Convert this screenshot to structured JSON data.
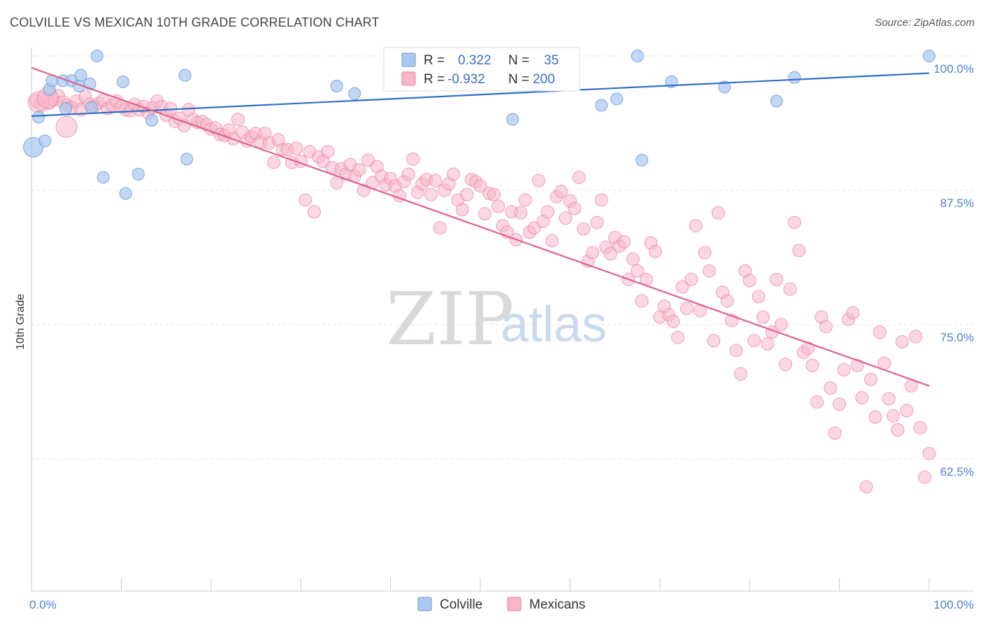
{
  "header": {
    "title": "COLVILLE VS MEXICAN 10TH GRADE CORRELATION CHART",
    "source": "Source: ZipAtlas.com"
  },
  "legend": {
    "r_label": "R =",
    "n_label": "N =",
    "series": [
      {
        "name": "Colville",
        "r": "0.322",
        "n": "35",
        "color": "#a8c8f0",
        "stroke": "#6a9ad8"
      },
      {
        "name": "Mexicans",
        "r": "-0.932",
        "n": "200",
        "color": "#f7b6c8",
        "stroke": "#e87ea0"
      }
    ]
  },
  "watermark": {
    "zip": "ZIP",
    "atlas": "atlas"
  },
  "chart_data": {
    "type": "scatter",
    "title": "COLVILLE VS MEXICAN 10TH GRADE CORRELATION CHART",
    "xlabel": "",
    "ylabel": "10th Grade",
    "xlim": [
      0,
      100
    ],
    "ylim": [
      50,
      100
    ],
    "x_tick_labels": [
      "0.0%",
      "100.0%"
    ],
    "y_ticks": [
      {
        "value": 100,
        "label": "100.0%"
      },
      {
        "value": 87.5,
        "label": "87.5%"
      },
      {
        "value": 75,
        "label": "75.0%"
      },
      {
        "value": 62.5,
        "label": "62.5%"
      }
    ],
    "grid": true,
    "legend_position": "top-center",
    "series": [
      {
        "name": "Colville",
        "color": "#6a9ad8",
        "fill": "#a8c8f0",
        "trend": {
          "x": [
            0,
            100
          ],
          "y": [
            94.4,
            98.4
          ]
        },
        "points": [
          [
            0.2,
            91.5
          ],
          [
            0.8,
            94.3
          ],
          [
            1.5,
            92.1
          ],
          [
            2,
            96.9
          ],
          [
            2.3,
            97.7
          ],
          [
            3.5,
            97.7
          ],
          [
            4.5,
            97.7
          ],
          [
            5.3,
            97.2
          ],
          [
            6.5,
            97.4
          ],
          [
            5.5,
            98.2
          ],
          [
            7.3,
            100
          ],
          [
            3.8,
            95.1
          ],
          [
            6.7,
            95.2
          ],
          [
            8.0,
            88.7
          ],
          [
            10.2,
            97.6
          ],
          [
            10.5,
            87.2
          ],
          [
            11.9,
            89.0
          ],
          [
            13.4,
            94.0
          ],
          [
            17.1,
            98.2
          ],
          [
            17.3,
            90.4
          ],
          [
            34.0,
            97.2
          ],
          [
            36.0,
            96.5
          ],
          [
            42.0,
            100
          ],
          [
            44.0,
            100
          ],
          [
            53.6,
            94.1
          ],
          [
            58.6,
            100
          ],
          [
            67.5,
            100
          ],
          [
            63.5,
            95.4
          ],
          [
            65.2,
            96.0
          ],
          [
            68.0,
            90.3
          ],
          [
            71.3,
            97.6
          ],
          [
            77.2,
            97.1
          ],
          [
            83.0,
            95.8
          ],
          [
            85.0,
            98.0
          ],
          [
            100,
            100
          ]
        ]
      },
      {
        "name": "Mexicans",
        "color": "#e87ea0",
        "fill": "#f7b6c8",
        "trend": {
          "x": [
            0,
            100
          ],
          "y": [
            98.9,
            69.3
          ]
        },
        "points": [
          [
            0.5,
            95.8
          ],
          [
            1,
            95.5
          ],
          [
            1.5,
            96.2
          ],
          [
            2,
            95.6
          ],
          [
            2.5,
            95.9
          ],
          [
            3,
            96.3
          ],
          [
            3.5,
            95.7
          ],
          [
            4,
            95.4
          ],
          [
            4.5,
            95.2
          ],
          [
            5,
            95.8
          ],
          [
            5.5,
            95.0
          ],
          [
            6,
            96.2
          ],
          [
            6.5,
            95.5
          ],
          [
            7,
            95.3
          ],
          [
            7.5,
            95.6
          ],
          [
            8,
            95.9
          ],
          [
            8.5,
            95.1
          ],
          [
            9,
            95.4
          ],
          [
            9.5,
            95.8
          ],
          [
            10,
            95.3
          ],
          [
            10.5,
            95.0
          ],
          [
            11,
            94.9
          ],
          [
            11.5,
            95.5
          ],
          [
            12,
            95.0
          ],
          [
            12.5,
            95.3
          ],
          [
            13,
            94.7
          ],
          [
            13.5,
            95.2
          ],
          [
            14,
            95.8
          ],
          [
            14.5,
            95.3
          ],
          [
            15,
            94.5
          ],
          [
            15.5,
            95.1
          ],
          [
            16,
            93.9
          ],
          [
            16.5,
            94.2
          ],
          [
            17,
            93.5
          ],
          [
            17.5,
            95.0
          ],
          [
            18,
            94.1
          ],
          [
            18.5,
            93.8
          ],
          [
            19,
            93.9
          ],
          [
            19.5,
            93.6
          ],
          [
            20,
            93.2
          ],
          [
            20.5,
            93.3
          ],
          [
            21,
            92.7
          ],
          [
            21.5,
            92.6
          ],
          [
            22,
            93.1
          ],
          [
            22.5,
            92.3
          ],
          [
            23,
            94.1
          ],
          [
            23.5,
            92.9
          ],
          [
            24,
            92.1
          ],
          [
            24.5,
            92.5
          ],
          [
            25,
            92.8
          ],
          [
            25.5,
            92.0
          ],
          [
            26,
            92.8
          ],
          [
            26.5,
            91.9
          ],
          [
            27,
            90.1
          ],
          [
            27.5,
            92.2
          ],
          [
            28,
            91.3
          ],
          [
            28.5,
            91.3
          ],
          [
            29,
            90.1
          ],
          [
            29.5,
            91.4
          ],
          [
            30,
            90.2
          ],
          [
            30.5,
            86.6
          ],
          [
            31,
            91.1
          ],
          [
            31.5,
            85.5
          ],
          [
            32,
            90.6
          ],
          [
            32.5,
            90.2
          ],
          [
            33,
            91.1
          ],
          [
            33.5,
            89.6
          ],
          [
            34,
            88.2
          ],
          [
            34.5,
            89.5
          ],
          [
            35,
            89.0
          ],
          [
            35.5,
            89.9
          ],
          [
            36,
            88.8
          ],
          [
            36.5,
            89.4
          ],
          [
            37,
            87.5
          ],
          [
            37.5,
            90.3
          ],
          [
            38,
            88.2
          ],
          [
            38.5,
            89.7
          ],
          [
            39,
            88.8
          ],
          [
            39.5,
            88.0
          ],
          [
            40,
            88.6
          ],
          [
            40.5,
            87.9
          ],
          [
            41,
            87.0
          ],
          [
            41.5,
            88.3
          ],
          [
            42,
            89.0
          ],
          [
            42.5,
            90.4
          ],
          [
            43,
            87.3
          ],
          [
            43.5,
            88.1
          ],
          [
            44,
            88.5
          ],
          [
            44.5,
            87.1
          ],
          [
            45,
            88.4
          ],
          [
            45.5,
            84.0
          ],
          [
            46,
            87.5
          ],
          [
            46.5,
            88.1
          ],
          [
            47,
            89.0
          ],
          [
            47.5,
            86.6
          ],
          [
            48,
            85.7
          ],
          [
            48.5,
            87.1
          ],
          [
            49,
            88.5
          ],
          [
            49.5,
            88.3
          ],
          [
            50,
            87.9
          ],
          [
            50.5,
            85.3
          ],
          [
            51,
            87.2
          ],
          [
            51.5,
            87.1
          ],
          [
            52,
            86.0
          ],
          [
            52.5,
            84.2
          ],
          [
            53,
            83.6
          ],
          [
            53.5,
            85.5
          ],
          [
            54,
            82.9
          ],
          [
            54.5,
            85.4
          ],
          [
            55,
            86.6
          ],
          [
            55.5,
            83.6
          ],
          [
            56,
            84.0
          ],
          [
            56.5,
            88.4
          ],
          [
            57,
            84.6
          ],
          [
            57.5,
            85.5
          ],
          [
            58,
            82.8
          ],
          [
            58.5,
            86.9
          ],
          [
            59,
            87.4
          ],
          [
            59.5,
            84.9
          ],
          [
            60,
            86.5
          ],
          [
            60.5,
            85.8
          ],
          [
            61,
            88.7
          ],
          [
            61.5,
            83.9
          ],
          [
            62,
            80.9
          ],
          [
            62.5,
            81.7
          ],
          [
            63,
            84.5
          ],
          [
            63.5,
            86.6
          ],
          [
            64,
            82.2
          ],
          [
            64.5,
            81.6
          ],
          [
            65,
            83.1
          ],
          [
            65.5,
            82.3
          ],
          [
            66,
            82.7
          ],
          [
            66.5,
            79.2
          ],
          [
            67,
            81.1
          ],
          [
            67.5,
            80.0
          ],
          [
            68,
            77.2
          ],
          [
            68.5,
            79.2
          ],
          [
            69,
            82.6
          ],
          [
            69.5,
            81.8
          ],
          [
            70,
            75.7
          ],
          [
            70.5,
            76.7
          ],
          [
            71,
            75.9
          ],
          [
            71.5,
            75.3
          ],
          [
            72,
            73.8
          ],
          [
            72.5,
            78.5
          ],
          [
            73,
            76.5
          ],
          [
            73.5,
            79.2
          ],
          [
            74,
            84.2
          ],
          [
            74.5,
            76.3
          ],
          [
            75,
            81.7
          ],
          [
            75.5,
            80.0
          ],
          [
            76,
            73.5
          ],
          [
            76.5,
            85.4
          ],
          [
            77,
            78.0
          ],
          [
            77.5,
            77.2
          ],
          [
            78,
            75.4
          ],
          [
            78.5,
            72.6
          ],
          [
            79,
            70.4
          ],
          [
            79.5,
            80.0
          ],
          [
            80,
            79.1
          ],
          [
            80.5,
            73.5
          ],
          [
            81,
            77.6
          ],
          [
            81.5,
            75.7
          ],
          [
            82,
            73.2
          ],
          [
            82.5,
            74.3
          ],
          [
            83,
            79.2
          ],
          [
            83.5,
            75.0
          ],
          [
            84,
            71.3
          ],
          [
            84.5,
            78.3
          ],
          [
            85,
            84.5
          ],
          [
            85.5,
            81.9
          ],
          [
            86,
            72.4
          ],
          [
            86.5,
            72.8
          ],
          [
            87,
            71.2
          ],
          [
            87.5,
            67.8
          ],
          [
            88,
            75.7
          ],
          [
            88.5,
            74.8
          ],
          [
            89,
            69.1
          ],
          [
            89.5,
            64.9
          ],
          [
            90,
            67.6
          ],
          [
            90.5,
            70.8
          ],
          [
            91,
            75.5
          ],
          [
            91.5,
            76.1
          ],
          [
            92,
            71.2
          ],
          [
            92.5,
            68.2
          ],
          [
            93,
            59.9
          ],
          [
            93.5,
            69.9
          ],
          [
            94,
            66.4
          ],
          [
            94.5,
            74.3
          ],
          [
            95,
            71.4
          ],
          [
            95.5,
            68.1
          ],
          [
            96,
            66.5
          ],
          [
            96.5,
            65.2
          ],
          [
            97,
            73.4
          ],
          [
            97.5,
            67.0
          ],
          [
            98,
            69.3
          ],
          [
            98.5,
            73.9
          ],
          [
            99,
            65.4
          ],
          [
            99.5,
            60.8
          ],
          [
            100,
            63.0
          ]
        ],
        "big_points": [
          [
            0.8,
            95.7
          ],
          [
            1.8,
            96.1
          ],
          [
            3.9,
            93.4
          ]
        ]
      }
    ]
  }
}
